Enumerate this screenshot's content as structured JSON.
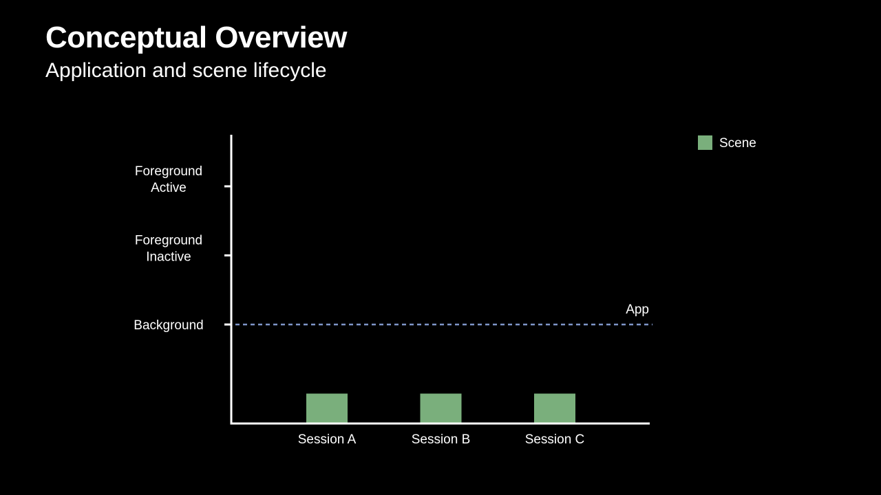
{
  "header": {
    "title": "Conceptual Overview",
    "subtitle": "Application and scene lifecycle"
  },
  "chart_data": {
    "type": "bar",
    "categories": [
      "Session A",
      "Session B",
      "Session C"
    ],
    "series": [
      {
        "name": "Scene",
        "values": [
          0,
          0,
          0
        ],
        "color": "#7aaf7c"
      }
    ],
    "y_levels": [
      {
        "label_lines": [
          "Background"
        ],
        "value": 1
      },
      {
        "label_lines": [
          "Foreground",
          "Inactive"
        ],
        "value": 2
      },
      {
        "label_lines": [
          "Foreground",
          "Active"
        ],
        "value": 3
      }
    ],
    "y_bottom": -1.43,
    "y_top": 3.7,
    "bar_base_note": "Scene bars sit below the Background level (not running)",
    "reference_lines": [
      {
        "name": "App",
        "value": 1,
        "style": "dashed",
        "color": "#7f95c9"
      }
    ],
    "legend": {
      "placement": "top-right",
      "entries": [
        "Scene"
      ]
    },
    "grid": false,
    "xlabel": "",
    "ylabel": ""
  }
}
